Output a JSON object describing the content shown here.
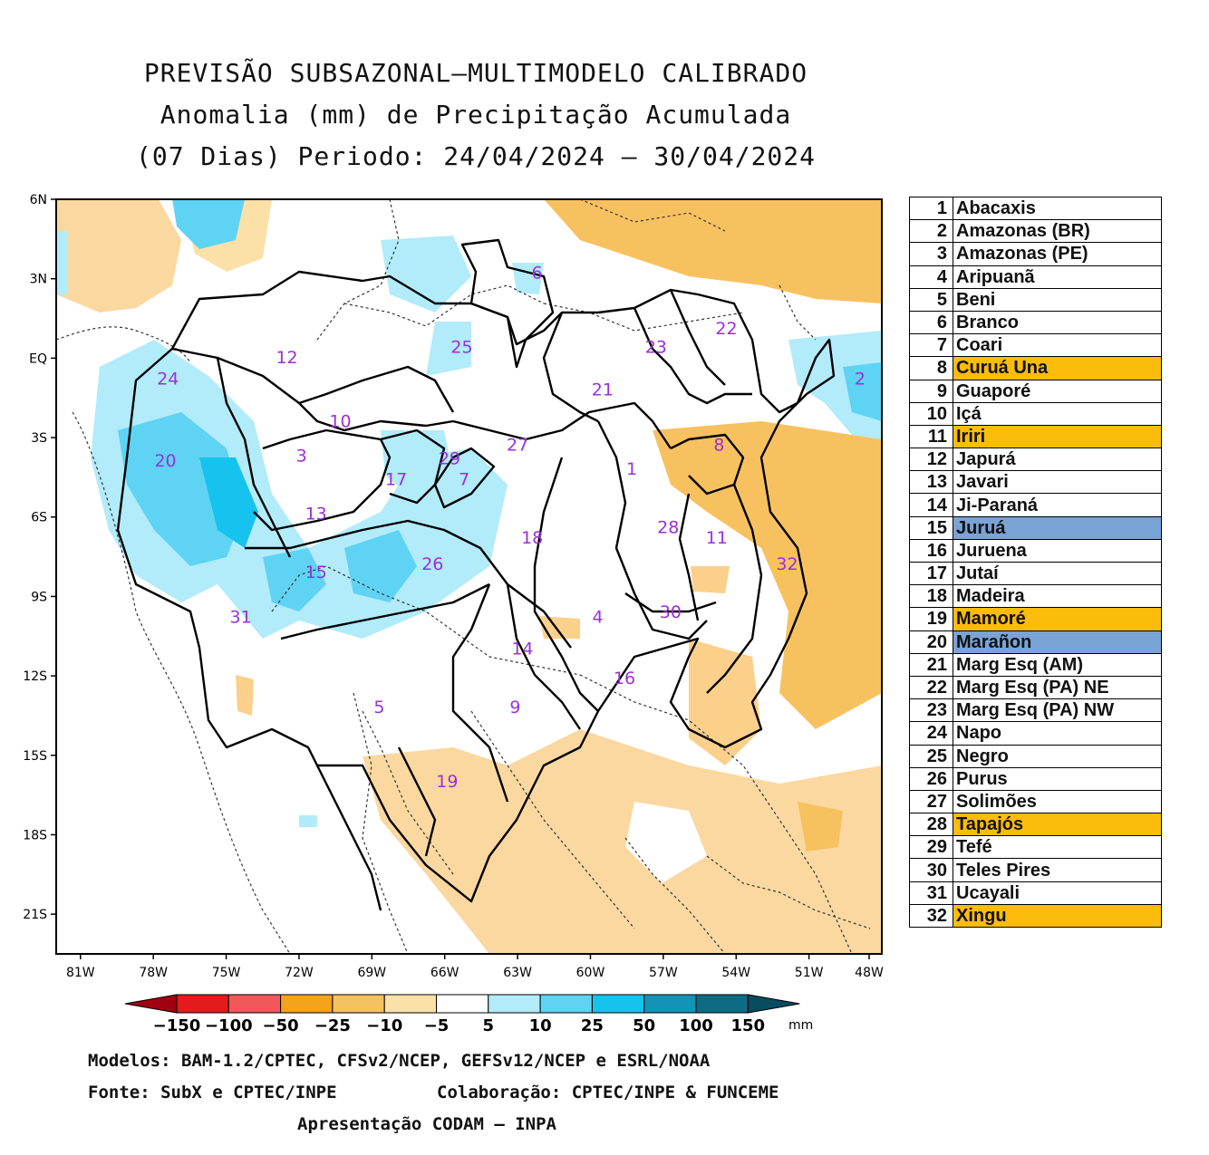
{
  "title_lines": [
    "PREVISÃO SUBSAZONAL—MULTIMODELO CALIBRADO",
    "Anomalia (mm) de Precipitação Acumulada",
    "(07 Dias) Periodo: 24/04/2024 — 30/04/2024"
  ],
  "map": {
    "lat_labels": [
      "6N",
      "3N",
      "EQ",
      "3S",
      "6S",
      "9S",
      "12S",
      "15S",
      "18S",
      "21S"
    ],
    "lon_labels": [
      "81W",
      "78W",
      "75W",
      "72W",
      "69W",
      "66W",
      "63W",
      "60W",
      "57W",
      "54W",
      "51W",
      "48W"
    ],
    "basin_labels": [
      {
        "id": "1",
        "lon": -58.3,
        "lat": -4.4
      },
      {
        "id": "2",
        "lon": -48.9,
        "lat": -1.0
      },
      {
        "id": "3",
        "lon": -71.9,
        "lat": -3.9
      },
      {
        "id": "4",
        "lon": -59.7,
        "lat": -10.0
      },
      {
        "id": "5",
        "lon": -68.7,
        "lat": -13.4
      },
      {
        "id": "6",
        "lon": -62.2,
        "lat": 3.0
      },
      {
        "id": "7",
        "lon": -65.2,
        "lat": -4.8
      },
      {
        "id": "8",
        "lon": -54.7,
        "lat": -3.5
      },
      {
        "id": "9",
        "lon": -63.1,
        "lat": -13.4
      },
      {
        "id": "10",
        "lon": -70.3,
        "lat": -2.6
      },
      {
        "id": "11",
        "lon": -54.8,
        "lat": -7.0
      },
      {
        "id": "12",
        "lon": -72.5,
        "lat": -0.2
      },
      {
        "id": "13",
        "lon": -71.3,
        "lat": -6.1
      },
      {
        "id": "14",
        "lon": -62.8,
        "lat": -11.2
      },
      {
        "id": "15",
        "lon": -71.3,
        "lat": -8.3
      },
      {
        "id": "16",
        "lon": -58.6,
        "lat": -12.3
      },
      {
        "id": "17",
        "lon": -68.0,
        "lat": -4.8
      },
      {
        "id": "18",
        "lon": -62.4,
        "lat": -7.0
      },
      {
        "id": "19",
        "lon": -65.9,
        "lat": -16.2
      },
      {
        "id": "20",
        "lon": -77.5,
        "lat": -4.1
      },
      {
        "id": "21",
        "lon": -59.5,
        "lat": -1.4
      },
      {
        "id": "22",
        "lon": -54.4,
        "lat": 0.9
      },
      {
        "id": "23",
        "lon": -57.3,
        "lat": 0.2
      },
      {
        "id": "24",
        "lon": -77.4,
        "lat": -1.0
      },
      {
        "id": "25",
        "lon": -65.3,
        "lat": 0.2
      },
      {
        "id": "26",
        "lon": -66.5,
        "lat": -8.0
      },
      {
        "id": "27",
        "lon": -63.0,
        "lat": -3.5
      },
      {
        "id": "28",
        "lon": -56.8,
        "lat": -6.6
      },
      {
        "id": "29",
        "lon": -65.8,
        "lat": -4.0
      },
      {
        "id": "30",
        "lon": -56.7,
        "lat": -9.8
      },
      {
        "id": "31",
        "lon": -74.4,
        "lat": -10.0
      },
      {
        "id": "32",
        "lon": -51.9,
        "lat": -8.0
      }
    ]
  },
  "colorbar": {
    "labels": [
      "-150",
      "-100",
      "-50",
      "-25",
      "-10",
      "-5",
      "5",
      "10",
      "25",
      "50",
      "100",
      "150"
    ],
    "unit": "mm",
    "colors": [
      "#e41a1c",
      "#f2585a",
      "#f5a21c",
      "#f8c160",
      "#fbe0a8",
      "#ffffff",
      "#b2ebfa",
      "#5fd3f3",
      "#16c2ee",
      "#1294b8",
      "#0d6b86"
    ],
    "under_color": "#a00010",
    "over_color": "#084c60"
  },
  "basins": [
    {
      "num": "1",
      "name": "Abacaxis",
      "highlight": ""
    },
    {
      "num": "2",
      "name": "Amazonas (BR)",
      "highlight": ""
    },
    {
      "num": "3",
      "name": "Amazonas (PE)",
      "highlight": ""
    },
    {
      "num": "4",
      "name": "Aripuanã",
      "highlight": ""
    },
    {
      "num": "5",
      "name": "Beni",
      "highlight": ""
    },
    {
      "num": "6",
      "name": "Branco",
      "highlight": ""
    },
    {
      "num": "7",
      "name": "Coari",
      "highlight": ""
    },
    {
      "num": "8",
      "name": "Curuá Una",
      "highlight": "#fbbc0b"
    },
    {
      "num": "9",
      "name": "Guaporé",
      "highlight": ""
    },
    {
      "num": "10",
      "name": "Içá",
      "highlight": ""
    },
    {
      "num": "11",
      "name": "Iriri",
      "highlight": "#fbbc0b"
    },
    {
      "num": "12",
      "name": "Japurá",
      "highlight": ""
    },
    {
      "num": "13",
      "name": "Javari",
      "highlight": ""
    },
    {
      "num": "14",
      "name": "Ji-Paraná",
      "highlight": ""
    },
    {
      "num": "15",
      "name": "Juruá",
      "highlight": "#7aa3d6"
    },
    {
      "num": "16",
      "name": "Juruena",
      "highlight": ""
    },
    {
      "num": "17",
      "name": "Jutaí",
      "highlight": ""
    },
    {
      "num": "18",
      "name": "Madeira",
      "highlight": ""
    },
    {
      "num": "19",
      "name": "Mamoré",
      "highlight": "#fbbc0b"
    },
    {
      "num": "20",
      "name": "Marañon",
      "highlight": "#7aa3d6"
    },
    {
      "num": "21",
      "name": "Marg Esq (AM)",
      "highlight": ""
    },
    {
      "num": "22",
      "name": "Marg Esq (PA) NE",
      "highlight": ""
    },
    {
      "num": "23",
      "name": "Marg Esq (PA) NW",
      "highlight": ""
    },
    {
      "num": "24",
      "name": "Napo",
      "highlight": ""
    },
    {
      "num": "25",
      "name": "Negro",
      "highlight": ""
    },
    {
      "num": "26",
      "name": "Purus",
      "highlight": ""
    },
    {
      "num": "27",
      "name": "Solimões",
      "highlight": ""
    },
    {
      "num": "28",
      "name": "Tapajós",
      "highlight": "#fbbc0b"
    },
    {
      "num": "29",
      "name": "Tefé",
      "highlight": ""
    },
    {
      "num": "30",
      "name": "Teles Pires",
      "highlight": ""
    },
    {
      "num": "31",
      "name": "Ucayali",
      "highlight": ""
    },
    {
      "num": "32",
      "name": "Xingu",
      "highlight": "#fbbc0b"
    }
  ],
  "footer": {
    "models": "Modelos: BAM-1.2/CPTEC, CFSv2/NCEP, GEFSv12/NCEP e ESRL/NOAA",
    "source": "Fonte: SubX e CPTEC/INPE",
    "collab": "Colaboração: CPTEC/INPE & FUNCEME",
    "presentation": "Apresentação CODAM — INPA"
  }
}
